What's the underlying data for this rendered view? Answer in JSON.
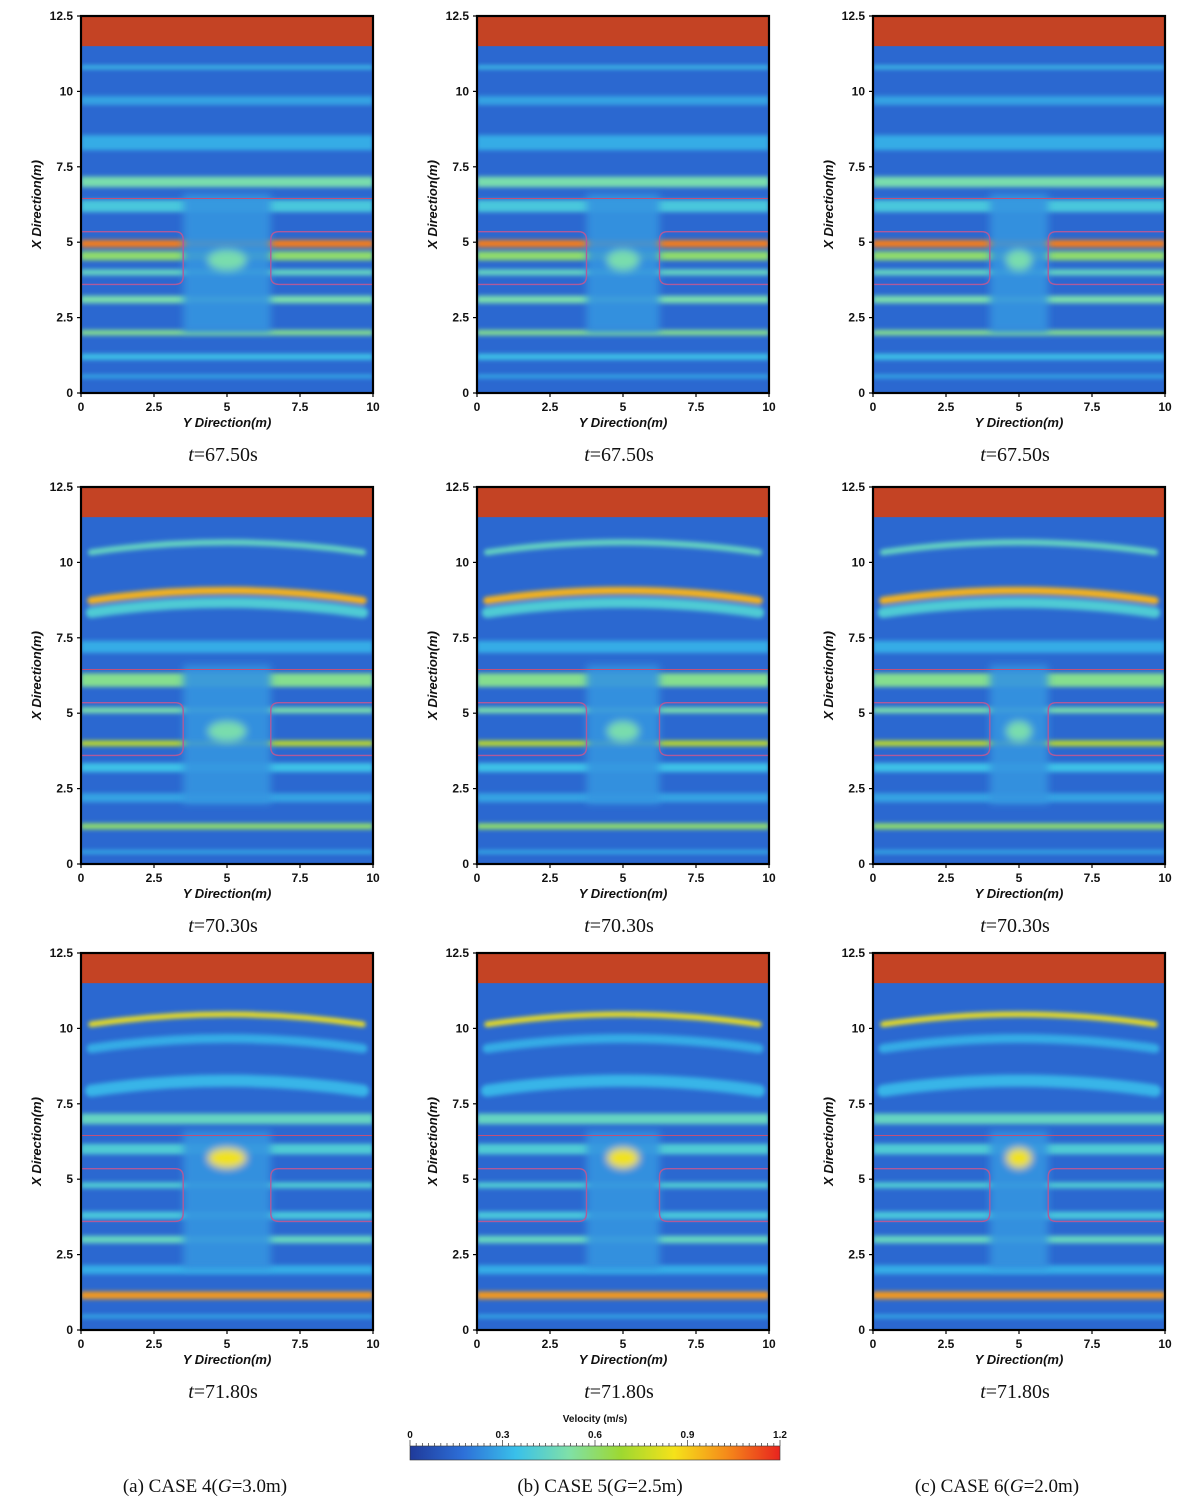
{
  "chart_data": {
    "type": "heatmap",
    "xlabel": "Y Direction(m)",
    "ylabel": "X Direction(m)",
    "xlim": [
      0,
      10
    ],
    "ylim": [
      0,
      12.5
    ],
    "x_ticks": [
      "0",
      "2.5",
      "5",
      "7.5",
      "10"
    ],
    "y_ticks": [
      "0",
      "2.5",
      "5",
      "7.5",
      "10",
      "12.5"
    ],
    "colorbar": {
      "title": "Velocity (m/s)",
      "range": [
        0,
        1.2
      ],
      "ticks": [
        "0",
        "0.3",
        "0.6",
        "0.9",
        "1.2"
      ],
      "colors": [
        "#1f3a9a",
        "#2d6fd8",
        "#39c0ea",
        "#7fe0a8",
        "#9ed830",
        "#f5e21a",
        "#f58a1a",
        "#e8231e"
      ]
    },
    "columns": [
      {
        "case_label": "(a)  CASE  4(",
        "g_symbol": "G",
        "g_value": "=3.0m)",
        "gap": 3.0
      },
      {
        "case_label": "(b)  CASE  5(",
        "g_symbol": "G",
        "g_value": "=2.5m)",
        "gap": 2.5
      },
      {
        "case_label": "(c)  CASE  6(",
        "g_symbol": "G",
        "g_value": "=2.0m)",
        "gap": 2.0
      }
    ],
    "rows": [
      {
        "t_symbol": "t",
        "t_value": "=67.50s"
      },
      {
        "t_symbol": "t",
        "t_value": "=70.30s"
      },
      {
        "t_symbol": "t",
        "t_value": "=71.80s"
      }
    ]
  }
}
